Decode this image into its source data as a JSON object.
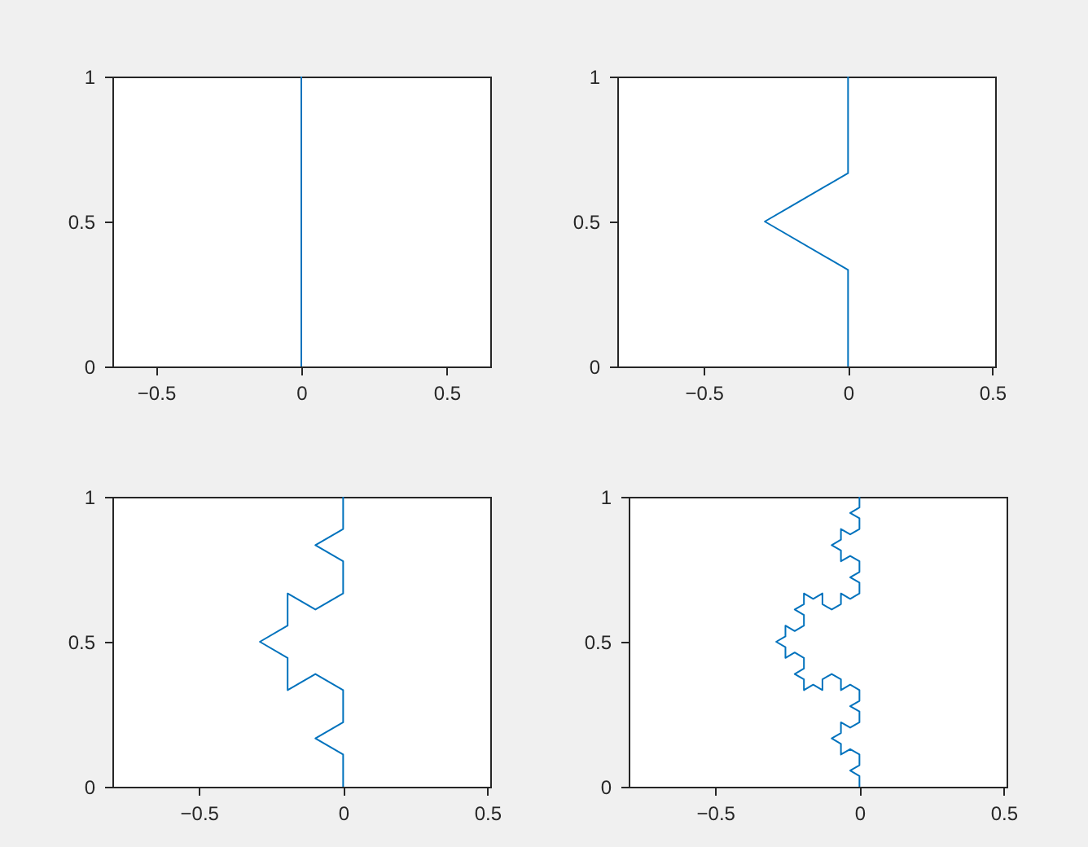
{
  "chart_data": [
    {
      "type": "line",
      "color": "#0072bd",
      "xlim": [
        -0.65,
        0.65
      ],
      "ylim": [
        0,
        1
      ],
      "xticks": [
        -0.5,
        0,
        0.5
      ],
      "yticks": [
        0,
        0.5,
        1
      ],
      "x": [
        0,
        0
      ],
      "values": [
        0,
        1
      ]
    },
    {
      "type": "line",
      "color": "#0072bd",
      "xlim": [
        -0.8,
        0.51
      ],
      "ylim": [
        0,
        1
      ],
      "xticks": [
        -0.5,
        0,
        0.5
      ],
      "yticks": [
        0,
        0.5,
        1
      ],
      "x": [
        0,
        0,
        -0.2887,
        0,
        0
      ],
      "values": [
        0,
        0.3333,
        0.5,
        0.6667,
        1
      ]
    },
    {
      "type": "line",
      "color": "#0072bd",
      "xlim": [
        -0.8,
        0.51
      ],
      "ylim": [
        0,
        1
      ],
      "xticks": [
        -0.5,
        0,
        0.5
      ],
      "yticks": [
        0,
        0.5,
        1
      ],
      "x": [
        0,
        0,
        -0.0962,
        0,
        0,
        -0.0962,
        -0.1925,
        -0.1925,
        -0.2887,
        -0.1925,
        -0.1925,
        -0.0962,
        0,
        0,
        -0.0962,
        0,
        0
      ],
      "values": [
        0,
        0.1111,
        0.1667,
        0.2222,
        0.3333,
        0.3889,
        0.3333,
        0.4444,
        0.5,
        0.5556,
        0.6667,
        0.6111,
        0.6667,
        0.7778,
        0.8333,
        0.8889,
        1
      ]
    },
    {
      "type": "line",
      "color": "#0072bd",
      "xlim": [
        -0.8,
        0.51
      ],
      "ylim": [
        0,
        1
      ],
      "xticks": [
        -0.5,
        0,
        0.5
      ],
      "yticks": [
        0,
        0.5,
        1
      ],
      "x": [
        0,
        0,
        -0.0321,
        0,
        0,
        -0.0321,
        -0.0642,
        -0.0642,
        -0.0962,
        -0.0642,
        -0.0642,
        -0.0321,
        0,
        0,
        -0.0321,
        0,
        0,
        -0.0321,
        -0.0642,
        -0.0642,
        -0.0962,
        -0.1283,
        -0.1283,
        -0.1604,
        -0.1925,
        -0.1925,
        -0.2245,
        -0.1925,
        -0.1925,
        -0.2245,
        -0.2566,
        -0.2566,
        -0.2887,
        -0.2566,
        -0.2566,
        -0.2245,
        -0.1925,
        -0.1925,
        -0.2245,
        -0.1925,
        -0.1925,
        -0.1604,
        -0.1283,
        -0.1283,
        -0.0962,
        -0.0642,
        -0.0642,
        -0.0321,
        0,
        0,
        -0.0321,
        0,
        0,
        -0.0321,
        -0.0642,
        -0.0642,
        -0.0962,
        -0.0642,
        -0.0642,
        -0.0321,
        0,
        0,
        -0.0321,
        0,
        0
      ],
      "values": [
        0,
        0.037,
        0.0556,
        0.0741,
        0.1111,
        0.1296,
        0.1111,
        0.1481,
        0.1667,
        0.1852,
        0.2222,
        0.2037,
        0.2222,
        0.2593,
        0.2778,
        0.2963,
        0.3333,
        0.3519,
        0.3333,
        0.3704,
        0.3889,
        0.3704,
        0.3333,
        0.3519,
        0.3333,
        0.3704,
        0.3889,
        0.4074,
        0.4444,
        0.463,
        0.4444,
        0.4815,
        0.5,
        0.5185,
        0.5556,
        0.537,
        0.5556,
        0.5926,
        0.6111,
        0.6296,
        0.6667,
        0.6481,
        0.6667,
        0.6296,
        0.6111,
        0.6296,
        0.6667,
        0.6481,
        0.6667,
        0.7037,
        0.7222,
        0.7407,
        0.7778,
        0.7963,
        0.7778,
        0.8148,
        0.8333,
        0.8519,
        0.8889,
        0.8704,
        0.8889,
        0.9259,
        0.9444,
        0.963,
        1
      ]
    }
  ]
}
